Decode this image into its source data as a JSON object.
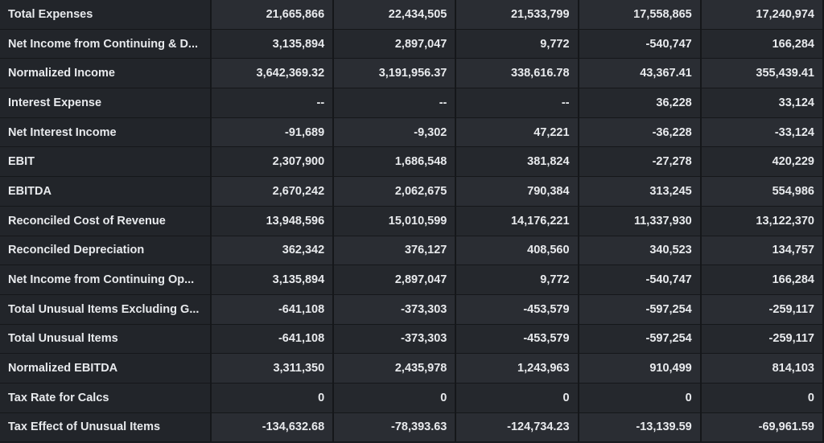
{
  "table": {
    "rows": [
      [
        "Total Expenses",
        "21,665,866",
        "22,434,505",
        "21,533,799",
        "17,558,865",
        "17,240,974"
      ],
      [
        "Net Income from Continuing & D...",
        "3,135,894",
        "2,897,047",
        "9,772",
        "-540,747",
        "166,284"
      ],
      [
        "Normalized Income",
        "3,642,369.32",
        "3,191,956.37",
        "338,616.78",
        "43,367.41",
        "355,439.41"
      ],
      [
        "Interest Expense",
        "--",
        "--",
        "--",
        "36,228",
        "33,124"
      ],
      [
        "Net Interest Income",
        "-91,689",
        "-9,302",
        "47,221",
        "-36,228",
        "-33,124"
      ],
      [
        "EBIT",
        "2,307,900",
        "1,686,548",
        "381,824",
        "-27,278",
        "420,229"
      ],
      [
        "EBITDA",
        "2,670,242",
        "2,062,675",
        "790,384",
        "313,245",
        "554,986"
      ],
      [
        "Reconciled Cost of Revenue",
        "13,948,596",
        "15,010,599",
        "14,176,221",
        "11,337,930",
        "13,122,370"
      ],
      [
        "Reconciled Depreciation",
        "362,342",
        "376,127",
        "408,560",
        "340,523",
        "134,757"
      ],
      [
        "Net Income from Continuing Op...",
        "3,135,894",
        "2,897,047",
        "9,772",
        "-540,747",
        "166,284"
      ],
      [
        "Total Unusual Items Excluding G...",
        "-641,108",
        "-373,303",
        "-453,579",
        "-597,254",
        "-259,117"
      ],
      [
        "Total Unusual Items",
        "-641,108",
        "-373,303",
        "-453,579",
        "-597,254",
        "-259,117"
      ],
      [
        "Normalized EBITDA",
        "3,311,350",
        "2,435,978",
        "1,243,963",
        "910,499",
        "814,103"
      ],
      [
        "Tax Rate for Calcs",
        "0",
        "0",
        "0",
        "0",
        "0"
      ],
      [
        "Tax Effect of Unusual Items",
        "-134,632.68",
        "-78,393.63",
        "-124,734.23",
        "-13,139.59",
        "-69,961.59"
      ]
    ]
  }
}
